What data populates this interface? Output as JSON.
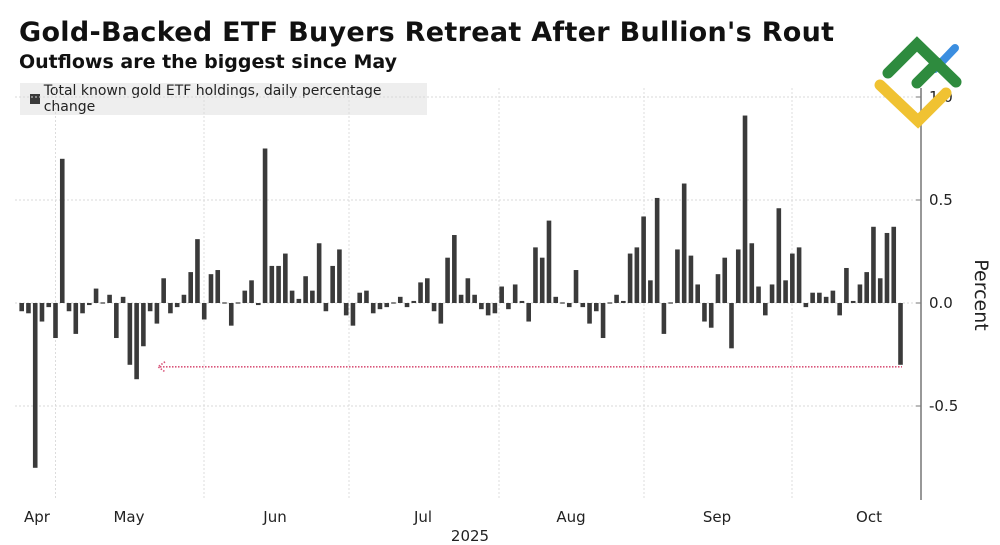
{
  "title": "Gold-Backed ETF Buyers Retreat After Bullion's Rout",
  "subtitle": "Outflows are the biggest since May",
  "colors": {
    "bar": "#3a3a3a",
    "arrow": "#d9557a",
    "logo_green": "#2e8b3e",
    "logo_yellow": "#f0c232",
    "logo_blue": "#3b8ee0"
  },
  "logo": "green-yellow-blue-diamond-logo",
  "chart_data": {
    "type": "bar",
    "title": "Gold-Backed ETF Buyers Retreat After Bullion's Rout",
    "subtitle": "Outflows are the biggest since May",
    "legend": {
      "position": "top-left",
      "entries": [
        "Total known gold ETF holdings, daily percentage change"
      ]
    },
    "series": [
      {
        "name": "Total known gold ETF holdings, daily percentage change",
        "values": [
          -0.04,
          -0.05,
          -0.8,
          -0.09,
          -0.02,
          -0.17,
          0.7,
          -0.04,
          -0.15,
          -0.05,
          -0.01,
          0.07,
          0.0,
          0.04,
          -0.17,
          0.03,
          -0.3,
          -0.37,
          -0.21,
          -0.04,
          -0.1,
          0.12,
          -0.05,
          -0.02,
          0.04,
          0.15,
          0.31,
          -0.08,
          0.14,
          0.16,
          0.0,
          -0.11,
          0.0,
          0.06,
          0.11,
          -0.01,
          0.75,
          0.18,
          0.18,
          0.24,
          0.06,
          0.02,
          0.13,
          0.06,
          0.29,
          -0.04,
          0.18,
          0.26,
          -0.06,
          -0.11,
          0.05,
          0.06,
          -0.05,
          -0.03,
          -0.02,
          0.0,
          0.03,
          -0.02,
          0.01,
          0.1,
          0.12,
          -0.04,
          -0.1,
          0.22,
          0.33,
          0.04,
          0.12,
          0.04,
          -0.03,
          -0.06,
          -0.05,
          0.08,
          -0.03,
          0.09,
          0.01,
          -0.09,
          0.27,
          0.22,
          0.4,
          0.03,
          0.0,
          -0.02,
          0.16,
          -0.02,
          -0.1,
          -0.04,
          -0.17,
          0.0,
          0.04,
          0.01,
          0.24,
          0.27,
          0.42,
          0.11,
          0.51,
          -0.15,
          0.0,
          0.26,
          0.58,
          0.23,
          0.09,
          -0.09,
          -0.12,
          0.14,
          0.22,
          -0.22,
          0.26,
          0.91,
          0.29,
          0.08,
          -0.06,
          0.09,
          0.46,
          0.11,
          0.24,
          0.27,
          -0.02,
          0.05,
          0.05,
          0.03,
          0.06,
          -0.06,
          0.17,
          0.01,
          0.09,
          0.15,
          0.37,
          0.12,
          0.34,
          0.37,
          -0.3
        ]
      }
    ],
    "x_ticks": [
      "Apr",
      "May",
      "Jun",
      "Jul",
      "Aug",
      "Sep",
      "Oct"
    ],
    "x_year_label": "2025",
    "xlabel": "",
    "ylabel": "Percent",
    "y_ticks": [
      "1.0",
      "0.5",
      "0.0",
      "-0.5"
    ],
    "ylim": [
      -0.96,
      1.04
    ],
    "grid": true,
    "y_axis_side": "right",
    "annotation": {
      "type": "dotted-arrow",
      "from_value": -0.3,
      "to_value": -0.3,
      "direction": "left",
      "color": "#d9557a"
    }
  }
}
